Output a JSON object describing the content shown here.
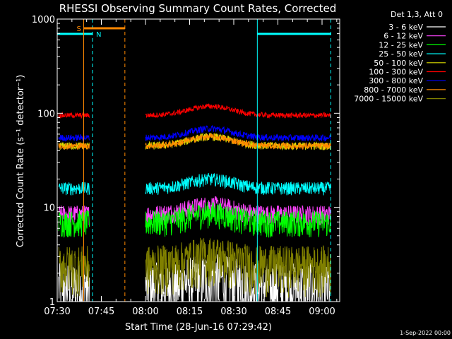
{
  "chart_data": {
    "type": "line",
    "title": "RHESSI Observing Summary Count Rates, Corrected",
    "xlabel": "Start Time (28-Jun-16 07:29:42)",
    "ylabel": "Corrected Count Rate (s⁻¹ detector⁻¹)",
    "yscale": "log",
    "ylim": [
      1,
      1000
    ],
    "xlim": [
      "07:30",
      "09:06"
    ],
    "x_ticks": [
      "07:30",
      "07:45",
      "08:00",
      "08:15",
      "08:30",
      "08:45",
      "09:00"
    ],
    "y_ticks": [
      "1",
      "10",
      "100",
      "1000"
    ],
    "grid": false,
    "legend_title": "Det 1,3, Att 0",
    "legend_position": "right",
    "data_gap": [
      "07:53",
      "08:00"
    ],
    "night_flag_intervals": [
      [
        "07:30",
        "07:42"
      ],
      [
        "08:38",
        "09:03"
      ]
    ],
    "saa_interval": [
      "07:39",
      "07:53"
    ],
    "flag_labels": {
      "saa": "S",
      "night": "N"
    },
    "series": [
      {
        "name": "3 - 6 keV",
        "color": "#ffffff",
        "level": 1.5,
        "noise": 0.45
      },
      {
        "name": "6 - 12 keV",
        "color": "#ff44ff",
        "level": 8.5,
        "noise": 0.15
      },
      {
        "name": "12 - 25 keV",
        "color": "#00ff00",
        "level": 7.0,
        "noise": 0.2
      },
      {
        "name": "25 - 50 keV",
        "color": "#00ffff",
        "level": 16,
        "noise": 0.1
      },
      {
        "name": "50 - 100 keV",
        "color": "#dddd00",
        "level": 45,
        "noise": 0.06
      },
      {
        "name": "100 - 300 keV",
        "color": "#ff0000",
        "level": 95,
        "noise": 0.04
      },
      {
        "name": "300 - 800 keV",
        "color": "#0000ff",
        "level": 55,
        "noise": 0.05
      },
      {
        "name": "800 - 7000 keV",
        "color": "#ff8800",
        "level": 45,
        "noise": 0.05
      },
      {
        "name": "7000 - 15000 keV",
        "color": "#808000",
        "level": 2.5,
        "noise": 0.35
      }
    ]
  },
  "footer": {
    "date_stamp": "1-Sep-2022 00:00"
  }
}
